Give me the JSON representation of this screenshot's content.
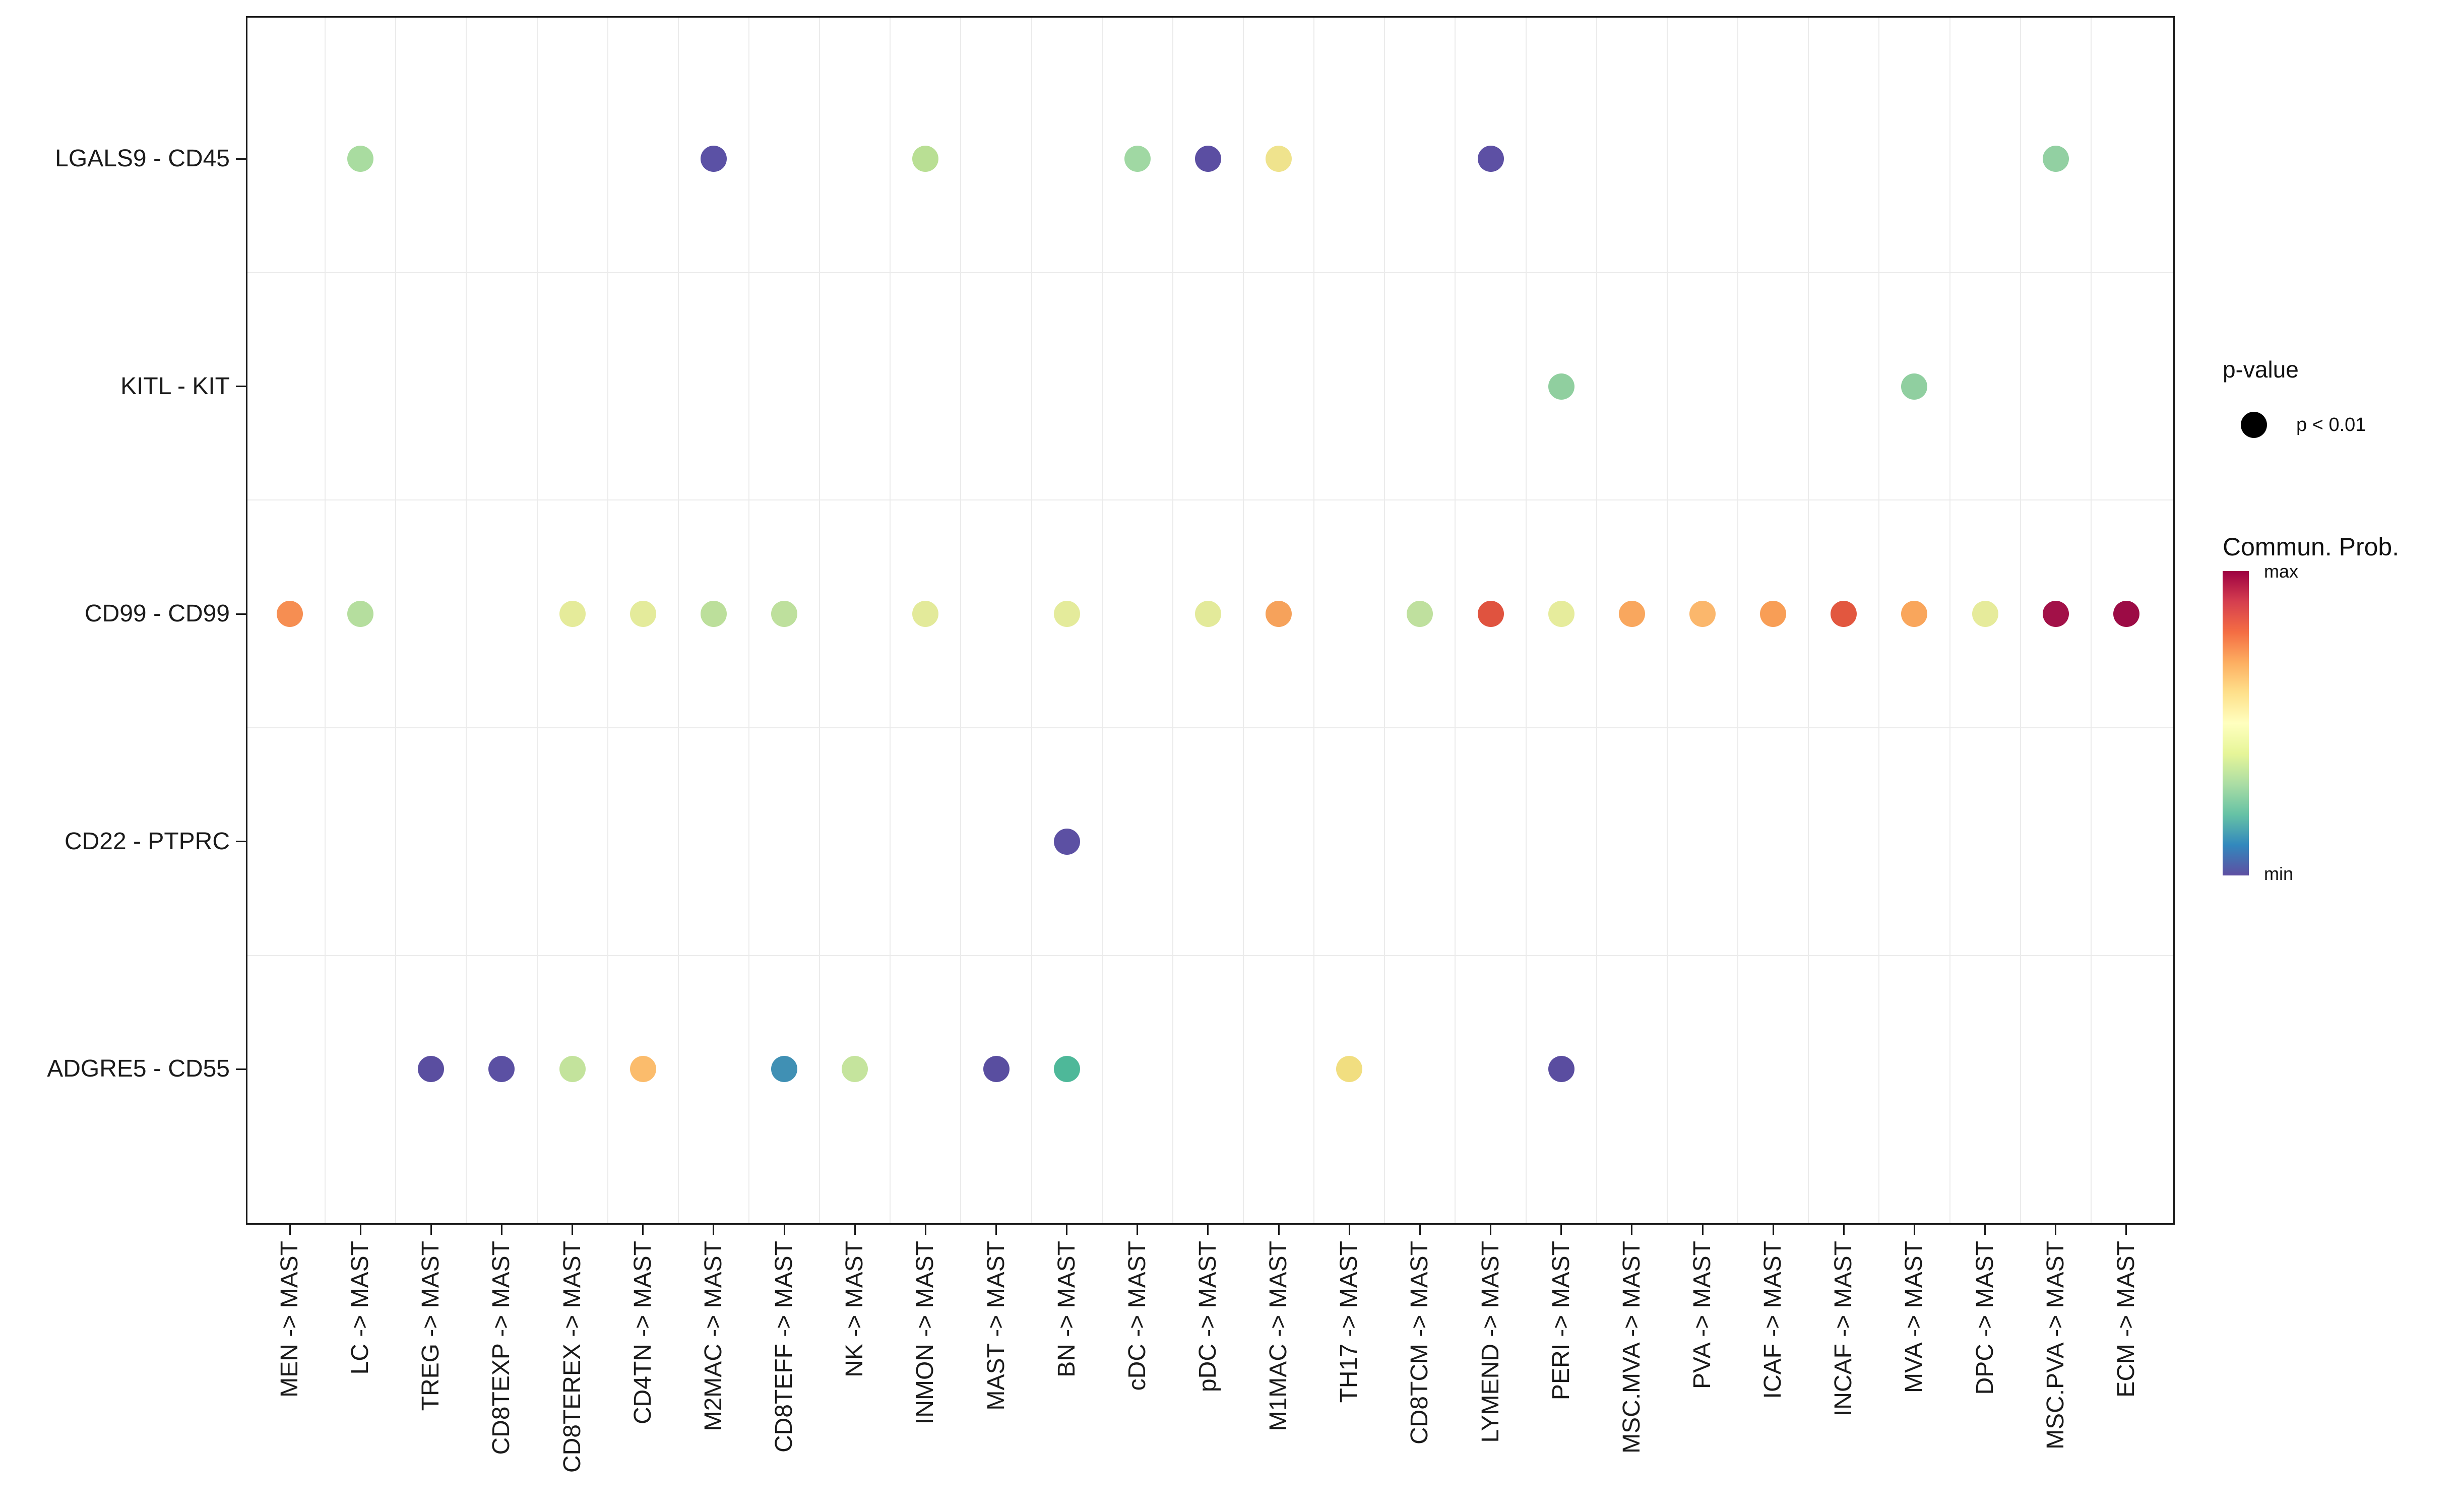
{
  "legend": {
    "pvalue": {
      "title": "p-value",
      "items": [
        {
          "label": "p < 0.01"
        }
      ]
    },
    "commun_prob": {
      "title": "Commun. Prob.",
      "max_label": "max",
      "min_label": "min",
      "gradient_top_to_bottom": [
        "#9E0142",
        "#D53E4F",
        "#F46D43",
        "#FDAE61",
        "#FEE08B",
        "#FFFFBF",
        "#E6F598",
        "#ABDDA4",
        "#66C2A5",
        "#3288BD",
        "#5E4FA2"
      ]
    }
  },
  "chart_data": {
    "type": "scatter",
    "title": "",
    "xlabel": "",
    "ylabel": "",
    "grid": true,
    "legend_position": "right",
    "x_categories": [
      "MEN -> MAST",
      "LC -> MAST",
      "TREG -> MAST",
      "CD8TEXP -> MAST",
      "CD8TEREX -> MAST",
      "CD4TN -> MAST",
      "M2MAC -> MAST",
      "CD8TEFF -> MAST",
      "NK -> MAST",
      "INMON -> MAST",
      "MAST -> MAST",
      "BN -> MAST",
      "cDC -> MAST",
      "pDC -> MAST",
      "M1MAC -> MAST",
      "TH17 -> MAST",
      "CD8TCM -> MAST",
      "LYMEND -> MAST",
      "PERI -> MAST",
      "MSC.MVA -> MAST",
      "PVA -> MAST",
      "ICAF -> MAST",
      "INCAF -> MAST",
      "MVA -> MAST",
      "DPC -> MAST",
      "MSC.PVA -> MAST",
      "ECM -> MAST"
    ],
    "y_categories": [
      "LGALS9 - CD45",
      "KITL - KIT",
      "CD99 - CD99",
      "CD22 - PTPRC",
      "ADGRE5 - CD55"
    ],
    "color_scale": "Spectral reversed: purple = min Commun. Prob., dark red = max; all dots are p < 0.01",
    "points": [
      {
        "x": "LC -> MAST",
        "y": "LGALS9 - CD45",
        "color": "#A9DCA0"
      },
      {
        "x": "M2MAC -> MAST",
        "y": "LGALS9 - CD45",
        "color": "#5B51A5"
      },
      {
        "x": "INMON -> MAST",
        "y": "LGALS9 - CD45",
        "color": "#B9DF94"
      },
      {
        "x": "cDC -> MAST",
        "y": "LGALS9 - CD45",
        "color": "#A0D8A3"
      },
      {
        "x": "pDC -> MAST",
        "y": "LGALS9 - CD45",
        "color": "#5B4EA2"
      },
      {
        "x": "M1MAC -> MAST",
        "y": "LGALS9 - CD45",
        "color": "#EFE38D"
      },
      {
        "x": "LYMEND -> MAST",
        "y": "LGALS9 - CD45",
        "color": "#5D50A4"
      },
      {
        "x": "MSC.PVA -> MAST",
        "y": "LGALS9 - CD45",
        "color": "#92D0A2"
      },
      {
        "x": "PERI -> MAST",
        "y": "KITL - KIT",
        "color": "#90CF9F"
      },
      {
        "x": "MVA -> MAST",
        "y": "KITL - KIT",
        "color": "#90CFA0"
      },
      {
        "x": "MEN -> MAST",
        "y": "CD99 - CD99",
        "color": "#F68E52"
      },
      {
        "x": "LC -> MAST",
        "y": "CD99 - CD99",
        "color": "#B5DE9E"
      },
      {
        "x": "CD8TEREX -> MAST",
        "y": "CD99 - CD99",
        "color": "#E5EB9A"
      },
      {
        "x": "CD4TN -> MAST",
        "y": "CD99 - CD99",
        "color": "#E4EB9B"
      },
      {
        "x": "M2MAC -> MAST",
        "y": "CD99 - CD99",
        "color": "#BCDF9B"
      },
      {
        "x": "CD8TEFF -> MAST",
        "y": "CD99 - CD99",
        "color": "#BEE09D"
      },
      {
        "x": "INMON -> MAST",
        "y": "CD99 - CD99",
        "color": "#E3EA9A"
      },
      {
        "x": "BN -> MAST",
        "y": "CD99 - CD99",
        "color": "#E4EB9B"
      },
      {
        "x": "pDC -> MAST",
        "y": "CD99 - CD99",
        "color": "#E3EA9A"
      },
      {
        "x": "M1MAC -> MAST",
        "y": "CD99 - CD99",
        "color": "#F6A25B"
      },
      {
        "x": "CD8TCM -> MAST",
        "y": "CD99 - CD99",
        "color": "#BFE09E"
      },
      {
        "x": "LYMEND -> MAST",
        "y": "CD99 - CD99",
        "color": "#E0533F"
      },
      {
        "x": "PERI -> MAST",
        "y": "CD99 - CD99",
        "color": "#E6EC9C"
      },
      {
        "x": "MSC.MVA -> MAST",
        "y": "CD99 - CD99",
        "color": "#F9A75E"
      },
      {
        "x": "PVA -> MAST",
        "y": "CD99 - CD99",
        "color": "#FBB76C"
      },
      {
        "x": "ICAF -> MAST",
        "y": "CD99 - CD99",
        "color": "#F89E56"
      },
      {
        "x": "INCAF -> MAST",
        "y": "CD99 - CD99",
        "color": "#E2573F"
      },
      {
        "x": "MVA -> MAST",
        "y": "CD99 - CD99",
        "color": "#F9A65C"
      },
      {
        "x": "DPC -> MAST",
        "y": "CD99 - CD99",
        "color": "#E6EB9B"
      },
      {
        "x": "MSC.PVA -> MAST",
        "y": "CD99 - CD99",
        "color": "#A21148"
      },
      {
        "x": "ECM -> MAST",
        "y": "CD99 - CD99",
        "color": "#9C0B45"
      },
      {
        "x": "BN -> MAST",
        "y": "CD22 - PTPRC",
        "color": "#5C50A3"
      },
      {
        "x": "TREG -> MAST",
        "y": "ADGRE5 - CD55",
        "color": "#5A4EA0"
      },
      {
        "x": "CD8TEXP -> MAST",
        "y": "ADGRE5 - CD55",
        "color": "#5B50A3"
      },
      {
        "x": "CD8TEREX -> MAST",
        "y": "ADGRE5 - CD55",
        "color": "#C3E39C"
      },
      {
        "x": "CD4TN -> MAST",
        "y": "ADGRE5 - CD55",
        "color": "#FBBC6C"
      },
      {
        "x": "CD8TEFF -> MAST",
        "y": "ADGRE5 - CD55",
        "color": "#4090B4"
      },
      {
        "x": "NK -> MAST",
        "y": "ADGRE5 - CD55",
        "color": "#C5E49D"
      },
      {
        "x": "MAST -> MAST",
        "y": "ADGRE5 - CD55",
        "color": "#594EA0"
      },
      {
        "x": "BN -> MAST",
        "y": "ADGRE5 - CD55",
        "color": "#4EB899"
      },
      {
        "x": "TH17 -> MAST",
        "y": "ADGRE5 - CD55",
        "color": "#F1DE80"
      },
      {
        "x": "PERI -> MAST",
        "y": "ADGRE5 - CD55",
        "color": "#5A4DA0"
      }
    ]
  }
}
